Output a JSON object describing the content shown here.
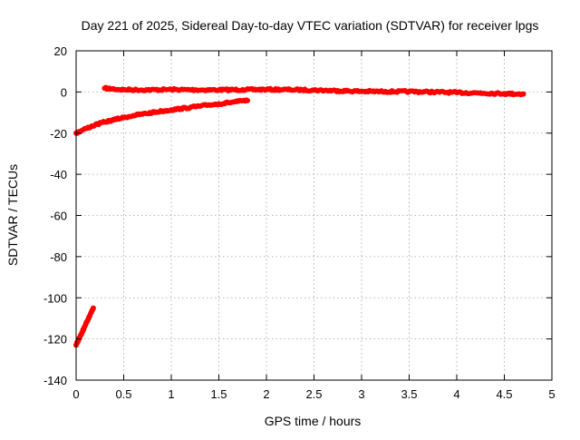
{
  "chart_data": {
    "type": "scatter",
    "title": "Day 221 of 2025, Sidereal Day-to-day VTEC variation (SDTVAR) for receiver lpgs",
    "xlabel": "GPS time / hours",
    "ylabel": "SDTVAR / TECUs",
    "xlim": [
      0,
      5
    ],
    "ylim": [
      -140,
      20
    ],
    "xticks": [
      0,
      0.5,
      1,
      1.5,
      2,
      2.5,
      3,
      3.5,
      4,
      4.5,
      5
    ],
    "xtick_labels": [
      "0",
      "0.5",
      "1",
      "1.5",
      "2",
      "2.5",
      "3",
      "3.5",
      "4",
      "4.5",
      "5"
    ],
    "yticks": [
      20,
      0,
      -20,
      -40,
      -60,
      -80,
      -100,
      -120,
      -140
    ],
    "ytick_labels": [
      "20",
      "0",
      "-20",
      "-40",
      "-60",
      "-80",
      "-100",
      "-120",
      "-140"
    ],
    "grid": true,
    "legend": "none",
    "series": [
      {
        "color": "#ff0000",
        "x": [
          0.3,
          0.4,
          0.5,
          0.75,
          1.0,
          1.25,
          1.5,
          1.75,
          2.0,
          2.25,
          2.5,
          2.75,
          3.0,
          3.25,
          3.5,
          3.75,
          4.0,
          4.25,
          4.5,
          4.7
        ],
        "y": [
          1.8,
          1.4,
          1.1,
          1.0,
          1.2,
          1.0,
          1.0,
          1.1,
          1.2,
          1.1,
          0.9,
          0.6,
          0.3,
          0.2,
          0.2,
          0.0,
          -0.3,
          -0.5,
          -0.8,
          -1.0
        ]
      },
      {
        "color": "#ff0000",
        "x": [
          0.0,
          0.05,
          0.1,
          0.2,
          0.3,
          0.4,
          0.5,
          0.6,
          0.7,
          0.8,
          0.9,
          1.0,
          1.1,
          1.2,
          1.3,
          1.4,
          1.5,
          1.6,
          1.7,
          1.8
        ],
        "y": [
          -20,
          -19,
          -17.8,
          -16,
          -14.6,
          -13.5,
          -12.4,
          -11.5,
          -10.7,
          -10,
          -9.3,
          -8.7,
          -8.1,
          -7.5,
          -6.9,
          -6.3,
          -5.8,
          -5.2,
          -4.6,
          -4.2
        ]
      },
      {
        "color": "#ff0000",
        "x": [
          0.0,
          0.02,
          0.04,
          0.06,
          0.08,
          0.1,
          0.12,
          0.14,
          0.16,
          0.18
        ],
        "y": [
          -123,
          -121,
          -119,
          -117,
          -115,
          -113,
          -111,
          -109,
          -107,
          -105
        ]
      }
    ]
  }
}
